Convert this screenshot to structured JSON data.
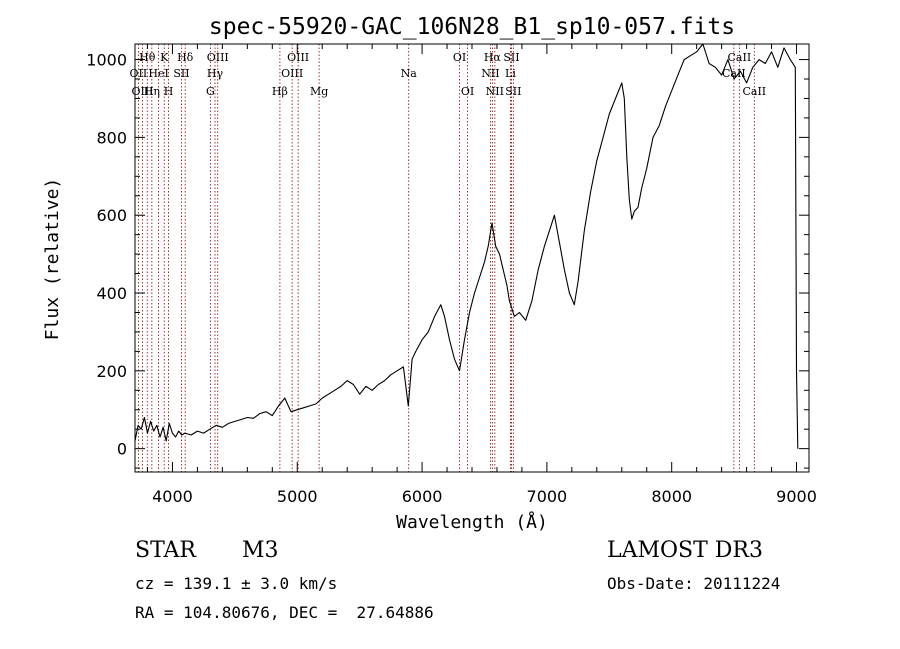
{
  "chart_data": {
    "type": "line",
    "title": "spec-55920-GAC_106N28_B1_sp10-057.fits",
    "xlabel": "Wavelength (Å)",
    "ylabel": "Flux (relative)",
    "xlim": [
      3700,
      9100
    ],
    "ylim": [
      -60,
      1040
    ],
    "xticks": [
      4000,
      5000,
      6000,
      7000,
      8000,
      9000
    ],
    "yticks": [
      0,
      200,
      400,
      600,
      800,
      1000
    ],
    "grid": false,
    "series": [
      {
        "name": "flux",
        "color": "#000000",
        "points": [
          [
            3700,
            20
          ],
          [
            3725,
            60
          ],
          [
            3750,
            50
          ],
          [
            3775,
            80
          ],
          [
            3800,
            40
          ],
          [
            3825,
            70
          ],
          [
            3850,
            45
          ],
          [
            3875,
            60
          ],
          [
            3900,
            30
          ],
          [
            3925,
            55
          ],
          [
            3950,
            20
          ],
          [
            3975,
            65
          ],
          [
            4000,
            40
          ],
          [
            4025,
            30
          ],
          [
            4050,
            45
          ],
          [
            4075,
            35
          ],
          [
            4100,
            40
          ],
          [
            4150,
            35
          ],
          [
            4200,
            45
          ],
          [
            4250,
            40
          ],
          [
            4300,
            50
          ],
          [
            4350,
            60
          ],
          [
            4400,
            55
          ],
          [
            4450,
            65
          ],
          [
            4500,
            70
          ],
          [
            4550,
            75
          ],
          [
            4600,
            80
          ],
          [
            4650,
            78
          ],
          [
            4700,
            90
          ],
          [
            4750,
            95
          ],
          [
            4800,
            85
          ],
          [
            4850,
            110
          ],
          [
            4900,
            130
          ],
          [
            4950,
            95
          ],
          [
            5000,
            100
          ],
          [
            5050,
            105
          ],
          [
            5100,
            110
          ],
          [
            5150,
            115
          ],
          [
            5200,
            130
          ],
          [
            5250,
            140
          ],
          [
            5300,
            150
          ],
          [
            5350,
            160
          ],
          [
            5400,
            175
          ],
          [
            5450,
            165
          ],
          [
            5500,
            140
          ],
          [
            5550,
            160
          ],
          [
            5600,
            150
          ],
          [
            5650,
            165
          ],
          [
            5700,
            175
          ],
          [
            5750,
            190
          ],
          [
            5800,
            200
          ],
          [
            5850,
            210
          ],
          [
            5890,
            110
          ],
          [
            5920,
            230
          ],
          [
            5950,
            250
          ],
          [
            6000,
            280
          ],
          [
            6050,
            300
          ],
          [
            6100,
            340
          ],
          [
            6150,
            370
          ],
          [
            6180,
            340
          ],
          [
            6220,
            280
          ],
          [
            6260,
            230
          ],
          [
            6300,
            200
          ],
          [
            6340,
            280
          ],
          [
            6380,
            350
          ],
          [
            6420,
            400
          ],
          [
            6460,
            440
          ],
          [
            6500,
            480
          ],
          [
            6530,
            520
          ],
          [
            6560,
            580
          ],
          [
            6590,
            520
          ],
          [
            6620,
            500
          ],
          [
            6650,
            460
          ],
          [
            6680,
            420
          ],
          [
            6700,
            380
          ],
          [
            6740,
            340
          ],
          [
            6780,
            350
          ],
          [
            6830,
            330
          ],
          [
            6880,
            380
          ],
          [
            6930,
            460
          ],
          [
            6980,
            520
          ],
          [
            7020,
            560
          ],
          [
            7060,
            600
          ],
          [
            7100,
            530
          ],
          [
            7140,
            460
          ],
          [
            7180,
            400
          ],
          [
            7220,
            370
          ],
          [
            7250,
            430
          ],
          [
            7300,
            560
          ],
          [
            7350,
            660
          ],
          [
            7400,
            740
          ],
          [
            7450,
            800
          ],
          [
            7500,
            860
          ],
          [
            7550,
            900
          ],
          [
            7600,
            940
          ],
          [
            7620,
            900
          ],
          [
            7640,
            750
          ],
          [
            7660,
            640
          ],
          [
            7680,
            590
          ],
          [
            7700,
            610
          ],
          [
            7730,
            620
          ],
          [
            7760,
            670
          ],
          [
            7800,
            720
          ],
          [
            7850,
            800
          ],
          [
            7900,
            830
          ],
          [
            7950,
            880
          ],
          [
            8000,
            920
          ],
          [
            8050,
            960
          ],
          [
            8100,
            1000
          ],
          [
            8150,
            1010
          ],
          [
            8200,
            1020
          ],
          [
            8250,
            1040
          ],
          [
            8300,
            990
          ],
          [
            8350,
            980
          ],
          [
            8400,
            960
          ],
          [
            8450,
            1000
          ],
          [
            8500,
            950
          ],
          [
            8550,
            970
          ],
          [
            8600,
            940
          ],
          [
            8650,
            980
          ],
          [
            8700,
            1000
          ],
          [
            8750,
            990
          ],
          [
            8800,
            1020
          ],
          [
            8850,
            980
          ],
          [
            8900,
            1030
          ],
          [
            8950,
            1000
          ],
          [
            8990,
            980
          ],
          [
            9000,
            200
          ],
          [
            9010,
            0
          ]
        ]
      }
    ],
    "line_markers": {
      "color": "#8b0000",
      "lines": [
        {
          "name": "Hθ",
          "label": "Hθ",
          "x": 3798,
          "row": 0
        },
        {
          "name": "OII",
          "label": "OII",
          "x": 3727,
          "row": 1
        },
        {
          "name": "OIII-3",
          "label": "OIII",
          "x": 3760,
          "row": 2
        },
        {
          "name": "K",
          "label": "K",
          "x": 3934,
          "row": 0
        },
        {
          "name": "HeI",
          "label": "HeI",
          "x": 3889,
          "row": 1
        },
        {
          "name": "Hη",
          "label": "Hη",
          "x": 3835,
          "row": 2
        },
        {
          "name": "Hδ",
          "label": "Hδ",
          "x": 4102,
          "row": 0
        },
        {
          "name": "SII-1",
          "label": "SII",
          "x": 4072,
          "row": 1
        },
        {
          "name": "H",
          "label": "H",
          "x": 3969,
          "row": 2
        },
        {
          "name": "OIII-1",
          "label": "OIII",
          "x": 4363,
          "row": 0
        },
        {
          "name": "Hγ",
          "label": "Hγ",
          "x": 4341,
          "row": 1
        },
        {
          "name": "G",
          "label": "G",
          "x": 4304,
          "row": 2
        },
        {
          "name": "OIII-4",
          "label": "OIII",
          "x": 5007,
          "row": 0
        },
        {
          "name": "OIII-5",
          "label": "OIII",
          "x": 4959,
          "row": 1
        },
        {
          "name": "Hβ",
          "label": "Hβ",
          "x": 4861,
          "row": 2
        },
        {
          "name": "Mg",
          "label": "Mg",
          "x": 5175,
          "row": 2
        },
        {
          "name": "Na",
          "label": "Na",
          "x": 5893,
          "row": 1
        },
        {
          "name": "OI-1",
          "label": "OI",
          "x": 6300,
          "row": 0
        },
        {
          "name": "OI-2",
          "label": "OI",
          "x": 6364,
          "row": 2
        },
        {
          "name": "Hα",
          "label": "Hα",
          "x": 6563,
          "row": 0
        },
        {
          "name": "NII-1",
          "label": "NII",
          "x": 6548,
          "row": 1
        },
        {
          "name": "NII-2",
          "label": "NII",
          "x": 6583,
          "row": 2
        },
        {
          "name": "SII-2",
          "label": "SII",
          "x": 6716,
          "row": 0
        },
        {
          "name": "Li",
          "label": "Li",
          "x": 6708,
          "row": 1
        },
        {
          "name": "SII-3",
          "label": "SII",
          "x": 6731,
          "row": 2
        },
        {
          "name": "CaII-1",
          "label": "CaII",
          "x": 8542,
          "row": 0
        },
        {
          "name": "CaII-2",
          "label": "CaII",
          "x": 8498,
          "row": 1
        },
        {
          "name": "CaII-3",
          "label": "CaII",
          "x": 8662,
          "row": 2
        }
      ]
    }
  },
  "info": {
    "class": "STAR",
    "subclass": "M3",
    "survey": "LAMOST DR3",
    "cz": "cz = 139.1 ± 3.0 km/s",
    "obs_date": "Obs-Date: 20111224",
    "radec": "RA = 104.80676, DEC =  27.64886"
  }
}
